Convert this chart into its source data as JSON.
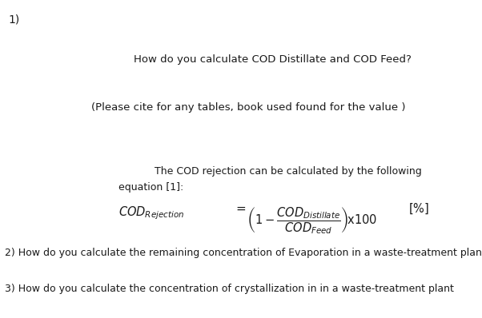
{
  "bg_color": "#ffffff",
  "text_color": "#1a1a1a",
  "label_1": "1)",
  "q1_line1": "How do you calculate COD Distillate and COD Feed?",
  "q1_line2": "(Please cite for any tables, book used found for the value )",
  "eq_intro1": "The COD rejection can be calculated by the following",
  "eq_intro2": "equation [1]:",
  "q2": "2) How do you calculate the remaining concentration of Evaporation in a waste-treatment plant",
  "q3": "3) How do you calculate the concentration of crystallization in in a waste-treatment plant",
  "figw": 6.02,
  "figh": 3.98,
  "dpi": 100
}
